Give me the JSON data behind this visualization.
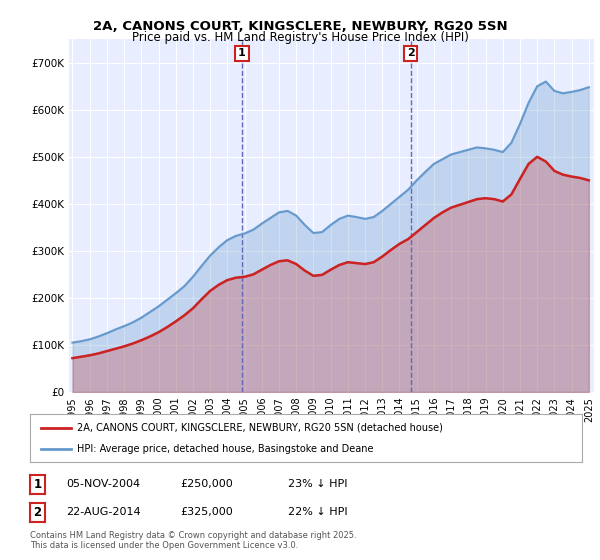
{
  "title1": "2A, CANONS COURT, KINGSCLERE, NEWBURY, RG20 5SN",
  "title2": "Price paid vs. HM Land Registry's House Price Index (HPI)",
  "ylabel": "",
  "bg_color": "#f0f4ff",
  "plot_bg": "#e8eeff",
  "legend_line1": "2A, CANONS COURT, KINGSCLERE, NEWBURY, RG20 5SN (detached house)",
  "legend_line2": "HPI: Average price, detached house, Basingstoke and Deane",
  "sale1_date": "05-NOV-2004",
  "sale1_price": "£250,000",
  "sale1_pct": "23% ↓ HPI",
  "sale2_date": "22-AUG-2014",
  "sale2_price": "£325,000",
  "sale2_pct": "22% ↓ HPI",
  "footer": "Contains HM Land Registry data © Crown copyright and database right 2025.\nThis data is licensed under the Open Government Licence v3.0.",
  "hpi_color": "#6699cc",
  "price_color": "#cc2222",
  "sale_vline_color": "#6666bb",
  "ylim_max": 750000,
  "hpi_x": [
    1995.0,
    1995.5,
    1996.0,
    1996.5,
    1997.0,
    1997.5,
    1998.0,
    1998.5,
    1999.0,
    1999.5,
    2000.0,
    2000.5,
    2001.0,
    2001.5,
    2002.0,
    2002.5,
    2003.0,
    2003.5,
    2004.0,
    2004.5,
    2005.0,
    2005.5,
    2006.0,
    2006.5,
    2007.0,
    2007.5,
    2008.0,
    2008.5,
    2009.0,
    2009.5,
    2010.0,
    2010.5,
    2011.0,
    2011.5,
    2012.0,
    2012.5,
    2013.0,
    2013.5,
    2014.0,
    2014.5,
    2015.0,
    2015.5,
    2016.0,
    2016.5,
    2017.0,
    2017.5,
    2018.0,
    2018.5,
    2019.0,
    2019.5,
    2020.0,
    2020.5,
    2021.0,
    2021.5,
    2022.0,
    2022.5,
    2023.0,
    2023.5,
    2024.0,
    2024.5,
    2025.0
  ],
  "hpi_y": [
    105000,
    108000,
    112000,
    118000,
    125000,
    133000,
    140000,
    148000,
    158000,
    170000,
    182000,
    196000,
    210000,
    225000,
    245000,
    268000,
    290000,
    308000,
    323000,
    332000,
    337000,
    345000,
    358000,
    370000,
    382000,
    385000,
    375000,
    355000,
    338000,
    340000,
    355000,
    368000,
    375000,
    372000,
    368000,
    372000,
    385000,
    400000,
    415000,
    430000,
    450000,
    468000,
    485000,
    495000,
    505000,
    510000,
    515000,
    520000,
    518000,
    515000,
    510000,
    530000,
    570000,
    615000,
    650000,
    660000,
    640000,
    635000,
    638000,
    642000,
    648000
  ],
  "price_x": [
    1995.0,
    1995.5,
    1996.0,
    1996.5,
    1997.0,
    1997.5,
    1998.0,
    1998.5,
    1999.0,
    1999.5,
    2000.0,
    2000.5,
    2001.0,
    2001.5,
    2002.0,
    2002.5,
    2003.0,
    2003.5,
    2004.0,
    2004.5,
    2005.0,
    2005.5,
    2006.0,
    2006.5,
    2007.0,
    2007.5,
    2008.0,
    2008.5,
    2009.0,
    2009.5,
    2010.0,
    2010.5,
    2011.0,
    2011.5,
    2012.0,
    2012.5,
    2013.0,
    2013.5,
    2014.0,
    2014.5,
    2015.0,
    2015.5,
    2016.0,
    2016.5,
    2017.0,
    2017.5,
    2018.0,
    2018.5,
    2019.0,
    2019.5,
    2020.0,
    2020.5,
    2021.0,
    2021.5,
    2022.0,
    2022.5,
    2023.0,
    2023.5,
    2024.0,
    2024.5,
    2025.0
  ],
  "price_y": [
    72000,
    75000,
    78000,
    82000,
    87000,
    92000,
    97000,
    103000,
    110000,
    118000,
    127000,
    138000,
    150000,
    163000,
    178000,
    197000,
    215000,
    228000,
    238000,
    243000,
    245000,
    250000,
    260000,
    270000,
    278000,
    280000,
    272000,
    258000,
    247000,
    249000,
    260000,
    270000,
    276000,
    274000,
    272000,
    276000,
    288000,
    302000,
    315000,
    325000,
    340000,
    355000,
    370000,
    382000,
    392000,
    398000,
    404000,
    410000,
    412000,
    410000,
    405000,
    420000,
    453000,
    485000,
    500000,
    490000,
    470000,
    462000,
    458000,
    455000,
    450000
  ],
  "sale1_x": 2004.85,
  "sale2_x": 2014.65,
  "xtick_years": [
    1995,
    1996,
    1997,
    1998,
    1999,
    2000,
    2001,
    2002,
    2003,
    2004,
    2005,
    2006,
    2007,
    2008,
    2009,
    2010,
    2011,
    2012,
    2013,
    2014,
    2015,
    2016,
    2017,
    2018,
    2019,
    2020,
    2021,
    2022,
    2023,
    2024,
    2025
  ]
}
